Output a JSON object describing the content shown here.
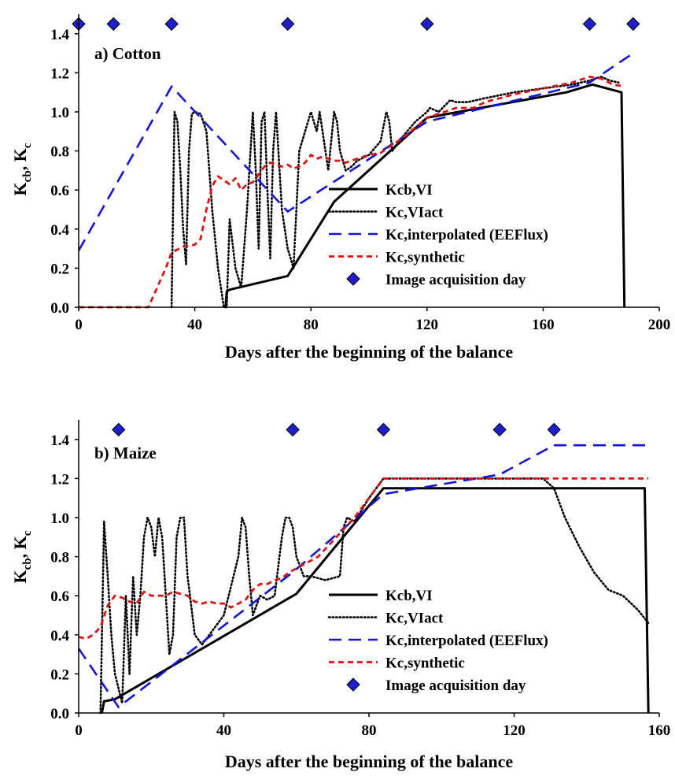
{
  "chart_data": [
    {
      "type": "line",
      "title": "a) Cotton",
      "xlabel": "Days after the beginning of the balance",
      "ylabel_main": "K",
      "ylabel_sub1": "cb",
      "ylabel_sep": ", K",
      "ylabel_sub2": "c",
      "xlim": [
        0,
        200
      ],
      "ylim": [
        0,
        1.5
      ],
      "xticks": [
        0,
        40,
        80,
        120,
        160,
        200
      ],
      "yticks": [
        0.0,
        0.2,
        0.4,
        0.6,
        0.8,
        1.0,
        1.2,
        1.4
      ],
      "ytick_labels": [
        "0.0",
        "0.2",
        "0.4",
        "0.6",
        "0.8",
        "1.0",
        "1.2",
        "1.4"
      ],
      "grid": false,
      "legend_position": "lower-right",
      "series": [
        {
          "name": "Kcb,VI",
          "style": "solid",
          "color": "#000000",
          "x": [
            50.6,
            51,
            52,
            72,
            88,
            120,
            168,
            177,
            187,
            188
          ],
          "y": [
            0,
            0.08,
            0.09,
            0.16,
            0.54,
            0.97,
            1.1,
            1.14,
            1.1,
            0
          ]
        },
        {
          "name": "Kc,VIact",
          "style": "dotted",
          "color": "#000000",
          "x": [
            32,
            33,
            34,
            35,
            36,
            37,
            38,
            39,
            40,
            42,
            44,
            46,
            48,
            50,
            51,
            52,
            54,
            56,
            58,
            60,
            61,
            62,
            63,
            64,
            65,
            66,
            67,
            68,
            70,
            72,
            74,
            76,
            78,
            80,
            82,
            83,
            84,
            86,
            88,
            89,
            90,
            92,
            94,
            96,
            100,
            104,
            106,
            107,
            108,
            112,
            116,
            120,
            121,
            124,
            128,
            130,
            134,
            140,
            150,
            160,
            170,
            176,
            180,
            183,
            186
          ],
          "y": [
            0,
            1.0,
            0.95,
            0.7,
            0.4,
            0.22,
            0.8,
            0.99,
            1.0,
            0.99,
            0.9,
            0.5,
            0.2,
            0.0,
            0.0,
            0.45,
            0.2,
            0.1,
            0.5,
            1.0,
            0.7,
            0.3,
            0.95,
            1.0,
            0.6,
            0.25,
            0.8,
            1.0,
            0.5,
            0.3,
            0.2,
            0.8,
            0.9,
            1.0,
            0.9,
            1.0,
            0.9,
            0.7,
            1.0,
            0.95,
            0.8,
            0.7,
            0.72,
            0.75,
            0.78,
            0.85,
            1.0,
            0.95,
            0.8,
            0.88,
            0.95,
            1.0,
            1.02,
            1.0,
            1.06,
            1.05,
            1.05,
            1.07,
            1.1,
            1.12,
            1.14,
            1.16,
            1.18,
            1.16,
            1.15
          ]
        },
        {
          "name": "Kc,interpolated (EEFlux)",
          "style": "dashed",
          "color": "#1414d8",
          "x": [
            0,
            32,
            72,
            120,
            176,
            191
          ],
          "y": [
            0.29,
            1.13,
            0.49,
            0.95,
            1.15,
            1.3
          ]
        },
        {
          "name": "Kc,synthetic",
          "style": "shortdash",
          "color": "#e01010",
          "x": [
            0,
            24,
            30,
            32,
            36,
            40,
            42,
            44,
            46,
            48,
            50,
            52,
            54,
            56,
            58,
            60,
            62,
            64,
            66,
            68,
            70,
            72,
            74,
            76,
            78,
            80,
            82,
            84,
            86,
            88,
            90,
            92,
            94,
            96,
            100,
            104,
            108,
            112,
            116,
            120,
            126,
            130,
            136,
            140,
            150,
            160,
            170,
            176,
            180,
            184,
            188
          ],
          "y": [
            0,
            0,
            0.2,
            0.28,
            0.31,
            0.32,
            0.35,
            0.5,
            0.62,
            0.67,
            0.65,
            0.63,
            0.66,
            0.6,
            0.63,
            0.64,
            0.68,
            0.72,
            0.74,
            0.73,
            0.72,
            0.73,
            0.71,
            0.72,
            0.74,
            0.78,
            0.76,
            0.77,
            0.76,
            0.75,
            0.75,
            0.74,
            0.75,
            0.76,
            0.78,
            0.79,
            0.83,
            0.87,
            0.92,
            0.97,
            1.0,
            1.02,
            1.02,
            1.05,
            1.09,
            1.12,
            1.15,
            1.18,
            1.17,
            1.14,
            1.13
          ]
        }
      ],
      "markers": {
        "name": "Image acquisition day",
        "color": "#1e1ecf",
        "x": [
          0,
          12,
          32,
          72,
          120,
          176,
          191
        ],
        "y": 1.45
      },
      "legend_labels": [
        "Kcb,VI",
        "Kc,VIact",
        "Kc,interpolated (EEFlux)",
        "Kc,synthetic",
        "Image acquisition day"
      ]
    },
    {
      "type": "line",
      "title": "b) Maize",
      "xlabel": "Days after the beginning of the balance",
      "ylabel_main": "K",
      "ylabel_sub1": "cb",
      "ylabel_sep": ", K",
      "ylabel_sub2": "c",
      "xlim": [
        0,
        160
      ],
      "ylim": [
        0,
        1.5
      ],
      "xticks": [
        0,
        40,
        80,
        120,
        160
      ],
      "yticks": [
        0.0,
        0.2,
        0.4,
        0.6,
        0.8,
        1.0,
        1.2,
        1.4
      ],
      "ytick_labels": [
        "0.0",
        "0.2",
        "0.4",
        "0.6",
        "0.8",
        "1.0",
        "1.2",
        "1.4"
      ],
      "grid": false,
      "legend_position": "lower-right",
      "series": [
        {
          "name": "Kcb,VI",
          "style": "solid",
          "color": "#000000",
          "x": [
            6.4,
            7,
            10,
            60,
            84,
            156,
            157
          ],
          "y": [
            0,
            0.06,
            0.07,
            0.61,
            1.15,
            1.15,
            0
          ]
        },
        {
          "name": "Kc,VIact",
          "style": "dotted",
          "color": "#000000",
          "x": [
            6,
            7,
            8,
            9,
            10,
            12,
            13,
            14,
            15,
            16,
            17,
            18,
            19,
            20,
            21,
            22,
            23,
            24,
            25,
            26,
            27,
            28,
            29,
            30,
            32,
            34,
            36,
            40,
            44,
            45,
            46,
            47,
            48,
            50,
            52,
            54,
            56,
            57,
            58,
            59,
            60,
            62,
            64,
            68,
            72,
            73,
            74,
            76,
            80,
            84,
            90,
            100,
            110,
            120,
            128,
            131,
            134,
            138,
            142,
            146,
            150,
            154,
            157
          ],
          "y": [
            0,
            0.98,
            0.7,
            0.4,
            0.2,
            0.05,
            0.6,
            0.2,
            0.7,
            0.4,
            0.6,
            0.9,
            1.0,
            0.95,
            0.8,
            1.0,
            0.9,
            0.6,
            0.3,
            0.4,
            0.9,
            1.0,
            1.0,
            0.7,
            0.4,
            0.35,
            0.4,
            0.5,
            0.8,
            1.0,
            0.95,
            0.7,
            0.5,
            0.6,
            0.58,
            0.6,
            0.9,
            1.0,
            1.0,
            0.95,
            0.8,
            0.7,
            0.7,
            0.68,
            0.7,
            0.95,
            1.0,
            0.98,
            1.1,
            1.2,
            1.2,
            1.2,
            1.2,
            1.2,
            1.2,
            1.15,
            1.0,
            0.85,
            0.72,
            0.63,
            0.6,
            0.53,
            0.46
          ]
        },
        {
          "name": "Kc,interpolated (EEFlux)",
          "style": "dashed",
          "color": "#1414d8",
          "x": [
            0,
            11,
            59,
            84,
            116,
            131,
            157
          ],
          "y": [
            0.33,
            0.03,
            0.72,
            1.12,
            1.22,
            1.37,
            1.37
          ]
        },
        {
          "name": "Kc,synthetic",
          "style": "shortdash",
          "color": "#e01010",
          "x": [
            0,
            2,
            4,
            6,
            8,
            10,
            12,
            14,
            16,
            18,
            20,
            22,
            24,
            26,
            28,
            30,
            32,
            34,
            36,
            38,
            40,
            42,
            44,
            46,
            48,
            50,
            52,
            54,
            56,
            58,
            60,
            62,
            64,
            66,
            68,
            70,
            72,
            74,
            76,
            78,
            80,
            82,
            84,
            100,
            120,
            140,
            157
          ],
          "y": [
            0.39,
            0.38,
            0.4,
            0.44,
            0.55,
            0.6,
            0.59,
            0.57,
            0.56,
            0.62,
            0.6,
            0.6,
            0.6,
            0.62,
            0.61,
            0.6,
            0.57,
            0.56,
            0.57,
            0.56,
            0.56,
            0.54,
            0.56,
            0.58,
            0.63,
            0.66,
            0.66,
            0.68,
            0.69,
            0.72,
            0.74,
            0.76,
            0.78,
            0.8,
            0.84,
            0.88,
            0.92,
            0.96,
            1.0,
            1.05,
            1.1,
            1.15,
            1.2,
            1.2,
            1.2,
            1.2,
            1.2
          ]
        }
      ],
      "markers": {
        "name": "Image acquisition day",
        "color": "#1e1ecf",
        "x": [
          11,
          59,
          84,
          116,
          131
        ],
        "y": 1.45
      },
      "legend_labels": [
        "Kcb,VI",
        "Kc,VIact",
        "Kc,interpolated (EEFlux)",
        "Kc,synthetic",
        "Image acquisition day"
      ]
    }
  ]
}
